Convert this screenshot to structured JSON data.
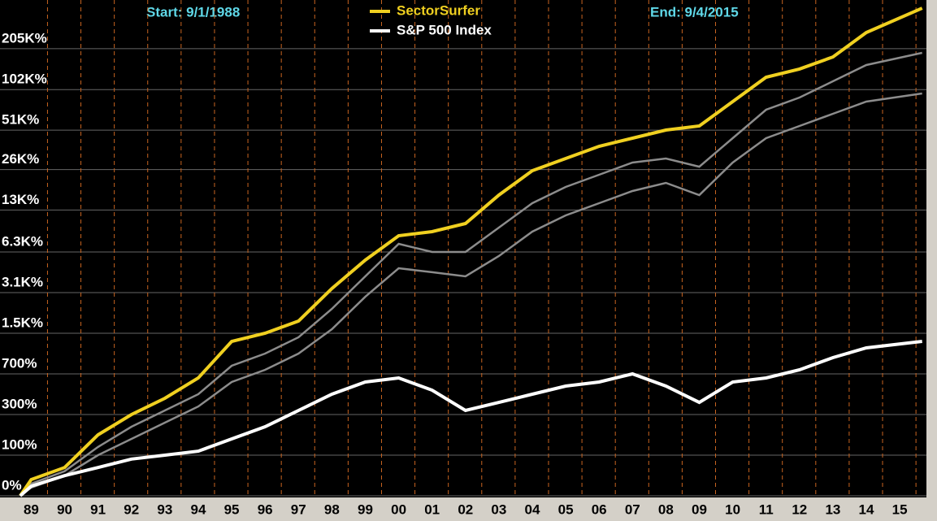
{
  "chart_data": {
    "type": "line",
    "start_label": "Start: 9/1/1988",
    "end_label": "End: 9/4/2015",
    "yscale": "log-growth",
    "grid": true,
    "legend": "top",
    "x": [
      1988.67,
      1989,
      1990,
      1991,
      1992,
      1993,
      1994,
      1995,
      1996,
      1997,
      1998,
      1999,
      2000,
      2001,
      2002,
      2003,
      2004,
      2005,
      2006,
      2007,
      2008,
      2009,
      2010,
      2011,
      2012,
      2013,
      2014,
      2015.67
    ],
    "xlim": [
      1988.6,
      2015.8
    ],
    "xticks": [
      {
        "value": 1989,
        "label": "89"
      },
      {
        "value": 1990,
        "label": "90"
      },
      {
        "value": 1991,
        "label": "91"
      },
      {
        "value": 1992,
        "label": "92"
      },
      {
        "value": 1993,
        "label": "93"
      },
      {
        "value": 1994,
        "label": "94"
      },
      {
        "value": 1995,
        "label": "95"
      },
      {
        "value": 1996,
        "label": "96"
      },
      {
        "value": 1997,
        "label": "97"
      },
      {
        "value": 1998,
        "label": "98"
      },
      {
        "value": 1999,
        "label": "99"
      },
      {
        "value": 2000,
        "label": "00"
      },
      {
        "value": 2001,
        "label": "01"
      },
      {
        "value": 2002,
        "label": "02"
      },
      {
        "value": 2003,
        "label": "03"
      },
      {
        "value": 2004,
        "label": "04"
      },
      {
        "value": 2005,
        "label": "05"
      },
      {
        "value": 2006,
        "label": "06"
      },
      {
        "value": 2007,
        "label": "07"
      },
      {
        "value": 2008,
        "label": "08"
      },
      {
        "value": 2009,
        "label": "09"
      },
      {
        "value": 2010,
        "label": "10"
      },
      {
        "value": 2011,
        "label": "11"
      },
      {
        "value": 2012,
        "label": "12"
      },
      {
        "value": 2013,
        "label": "13"
      },
      {
        "value": 2014,
        "label": "14"
      },
      {
        "value": 2015,
        "label": "15"
      }
    ],
    "ylim": [
      0,
      409500
    ],
    "yticks": [
      {
        "value": 0,
        "label": "0%"
      },
      {
        "value": 100,
        "label": "100%"
      },
      {
        "value": 300,
        "label": "300%"
      },
      {
        "value": 700,
        "label": "700%"
      },
      {
        "value": 1500,
        "label": "1.5K%"
      },
      {
        "value": 3100,
        "label": "3.1K%"
      },
      {
        "value": 6300,
        "label": "6.3K%"
      },
      {
        "value": 13000,
        "label": "13K%"
      },
      {
        "value": 26000,
        "label": "26K%"
      },
      {
        "value": 51000,
        "label": "51K%"
      },
      {
        "value": 102000,
        "label": "102K%"
      },
      {
        "value": 205000,
        "label": "205K%"
      }
    ],
    "series": [
      {
        "color": "#8c8c8c",
        "values": [
          0,
          23,
          52,
          130,
          225,
          329,
          466,
          819,
          1031,
          1393,
          2325,
          4122,
          7250,
          6300,
          6300,
          9600,
          14600,
          19300,
          23800,
          29300,
          31400,
          27300,
          44500,
          72300,
          89000,
          117500,
          155100,
          191000
        ]
      },
      {
        "color": "#8c8c8c",
        "values": [
          0,
          15,
          41,
          100,
          164,
          248,
          359,
          596,
          757,
          1031,
          1615,
          2880,
          4750,
          4430,
          4122,
          5870,
          8950,
          11850,
          14600,
          18000,
          20700,
          16800,
          29300,
          44500,
          54800,
          67500,
          83100,
          95400
        ]
      },
      {
        "name": "SectorSurfer",
        "color": "#f0d020",
        "values": [
          0,
          32,
          62,
          183,
          300,
          428,
          646,
          1293,
          1500,
          1870,
          3330,
          5470,
          8340,
          8950,
          10300,
          16800,
          25500,
          31400,
          38700,
          44500,
          51100,
          54800,
          83100,
          126000,
          145000,
          178000,
          270000,
          409000
        ]
      },
      {
        "name": "S&P 500 Index",
        "color": "#ffffff",
        "values": [
          0,
          18,
          41,
          62,
          87,
          100,
          114,
          164,
          225,
          329,
          466,
          596,
          646,
          506,
          329,
          392,
          466,
          550,
          596,
          700,
          550,
          392,
          596,
          646,
          757,
          956,
          1146,
          1293
        ]
      }
    ]
  }
}
